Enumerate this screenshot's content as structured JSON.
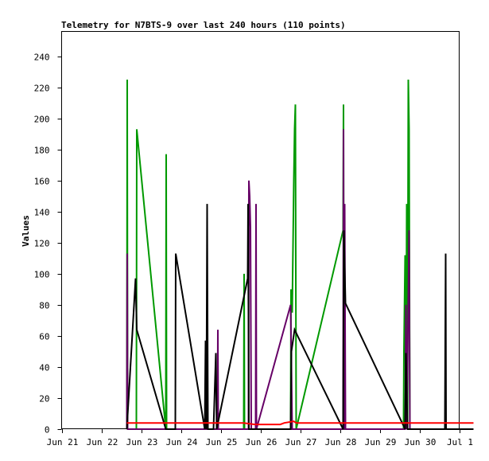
{
  "chart_data": {
    "type": "line",
    "title": "Telemetry for N7BTS-9 over last 240 hours (110 points)",
    "xlabel": "",
    "ylabel": "Values",
    "x_tick_labels": [
      "Jun 21",
      "Jun 22",
      "Jun 23",
      "Jun 24",
      "Jun 25",
      "Jun 26",
      "Jun 27",
      "Jun 28",
      "Jun 29",
      "Jun 30",
      "Jul 1"
    ],
    "xlim": [
      0,
      10
    ],
    "ylim": [
      0,
      256
    ],
    "y_ticks": [
      0,
      20,
      40,
      60,
      80,
      100,
      120,
      140,
      160,
      180,
      200,
      220,
      240
    ],
    "grid": false,
    "legend": "none",
    "x_units": "days since Jun 21 00:00",
    "series": [
      {
        "color": "#009900",
        "points": [
          [
            1.64,
            0
          ],
          [
            1.65,
            225
          ],
          [
            1.66,
            0
          ],
          [
            1.88,
            0
          ],
          [
            1.89,
            193
          ],
          [
            2.62,
            0
          ],
          [
            2.63,
            177
          ],
          [
            2.64,
            0
          ],
          [
            4.58,
            0
          ],
          [
            4.59,
            100
          ],
          [
            4.6,
            0
          ],
          [
            5.76,
            0
          ],
          [
            5.77,
            90
          ],
          [
            5.8,
            75
          ],
          [
            5.84,
            160
          ],
          [
            5.86,
            193
          ],
          [
            5.88,
            209
          ],
          [
            5.9,
            0
          ],
          [
            7.08,
            128
          ],
          [
            7.09,
            209
          ],
          [
            7.1,
            0
          ],
          [
            8.6,
            0
          ],
          [
            8.61,
            50
          ],
          [
            8.64,
            112
          ],
          [
            8.66,
            0
          ],
          [
            8.68,
            145
          ],
          [
            8.7,
            0
          ],
          [
            8.72,
            225
          ],
          [
            8.74,
            193
          ],
          [
            8.76,
            0
          ],
          [
            10.36,
            0
          ]
        ]
      },
      {
        "color": "#660066",
        "points": [
          [
            1.64,
            0
          ],
          [
            1.65,
            113
          ],
          [
            1.66,
            0
          ],
          [
            3.92,
            0
          ],
          [
            3.93,
            64
          ],
          [
            3.94,
            0
          ],
          [
            4.7,
            0
          ],
          [
            4.71,
            160
          ],
          [
            4.73,
            150
          ],
          [
            4.75,
            130
          ],
          [
            4.77,
            0
          ],
          [
            4.88,
            0
          ],
          [
            4.89,
            145
          ],
          [
            4.9,
            0
          ],
          [
            5.76,
            80
          ],
          [
            5.8,
            0
          ],
          [
            7.08,
            0
          ],
          [
            7.09,
            193
          ],
          [
            7.1,
            0
          ],
          [
            7.12,
            145
          ],
          [
            7.14,
            0
          ],
          [
            8.64,
            0
          ],
          [
            8.66,
            80
          ],
          [
            8.68,
            0
          ],
          [
            8.74,
            128
          ],
          [
            8.76,
            0
          ],
          [
            10.36,
            0
          ]
        ]
      },
      {
        "color": "#000000",
        "points": [
          [
            1.64,
            0
          ],
          [
            1.86,
            97
          ],
          [
            1.89,
            64
          ],
          [
            2.62,
            0
          ],
          [
            2.86,
            0
          ],
          [
            2.87,
            113
          ],
          [
            3.6,
            0
          ],
          [
            3.62,
            57
          ],
          [
            3.64,
            0
          ],
          [
            3.66,
            145
          ],
          [
            3.68,
            0
          ],
          [
            3.82,
            0
          ],
          [
            3.88,
            49
          ],
          [
            3.9,
            0
          ],
          [
            4.68,
            97
          ],
          [
            4.69,
            145
          ],
          [
            4.71,
            0
          ],
          [
            4.86,
            0
          ],
          [
            5.76,
            0
          ],
          [
            5.78,
            50
          ],
          [
            5.86,
            64
          ],
          [
            7.08,
            0
          ],
          [
            7.1,
            128
          ],
          [
            7.12,
            104
          ],
          [
            7.14,
            81
          ],
          [
            8.64,
            0
          ],
          [
            8.66,
            49
          ],
          [
            8.7,
            0
          ],
          [
            9.64,
            0
          ],
          [
            9.65,
            57
          ],
          [
            9.66,
            113
          ],
          [
            9.67,
            0
          ],
          [
            10.36,
            0
          ]
        ]
      },
      {
        "color": "#ff0000",
        "points": [
          [
            1.64,
            4
          ],
          [
            2.62,
            4
          ],
          [
            3.6,
            4
          ],
          [
            4.58,
            4
          ],
          [
            4.86,
            3
          ],
          [
            5.3,
            3
          ],
          [
            5.5,
            3
          ],
          [
            5.6,
            4
          ],
          [
            5.84,
            5
          ],
          [
            5.9,
            4
          ],
          [
            7.08,
            4
          ],
          [
            8.64,
            4
          ],
          [
            9.64,
            4
          ],
          [
            10.36,
            4
          ]
        ]
      }
    ]
  }
}
